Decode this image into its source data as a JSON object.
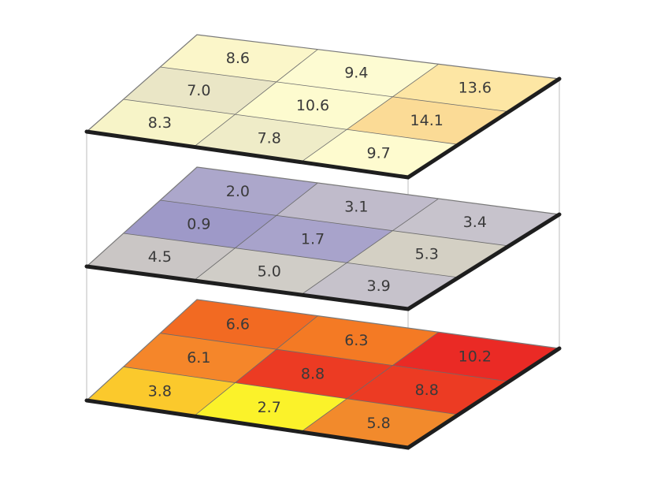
{
  "layers": [
    {
      "name": "top",
      "cells": [
        [
          {
            "value": "8.6",
            "color": "#fbf6c9"
          },
          {
            "value": "9.4",
            "color": "#fdfbd2"
          },
          {
            "value": "13.6",
            "color": "#fde6a4"
          }
        ],
        [
          {
            "value": "7.0",
            "color": "#eae6c6"
          },
          {
            "value": "10.6",
            "color": "#fdfbcf"
          },
          {
            "value": "14.1",
            "color": "#fbdb96"
          }
        ],
        [
          {
            "value": "8.3",
            "color": "#f7f4c8"
          },
          {
            "value": "7.8",
            "color": "#efecc8"
          },
          {
            "value": "9.7",
            "color": "#fefbcf"
          }
        ]
      ]
    },
    {
      "name": "middle",
      "cells": [
        [
          {
            "value": "2.0",
            "color": "#aca7cb"
          },
          {
            "value": "3.1",
            "color": "#c0bbcb"
          },
          {
            "value": "3.4",
            "color": "#c7c3cc"
          }
        ],
        [
          {
            "value": "0.9",
            "color": "#9e99c8"
          },
          {
            "value": "1.7",
            "color": "#a8a3cb"
          },
          {
            "value": "5.3",
            "color": "#d4d0c4"
          }
        ],
        [
          {
            "value": "4.5",
            "color": "#cac6c5"
          },
          {
            "value": "5.0",
            "color": "#d0cdc7"
          },
          {
            "value": "3.9",
            "color": "#c6c2cb"
          }
        ]
      ]
    },
    {
      "name": "bottom",
      "cells": [
        [
          {
            "value": "6.6",
            "color": "#f26a22"
          },
          {
            "value": "6.3",
            "color": "#f47a24"
          },
          {
            "value": "10.2",
            "color": "#ea2a25"
          }
        ],
        [
          {
            "value": "6.1",
            "color": "#f5862a"
          },
          {
            "value": "8.8",
            "color": "#ec3b23"
          },
          {
            "value": "8.8",
            "color": "#ec3b23"
          }
        ],
        [
          {
            "value": "3.8",
            "color": "#fbc92c"
          },
          {
            "value": "2.7",
            "color": "#fbf22a"
          },
          {
            "value": "5.8",
            "color": "#f28a2c"
          }
        ]
      ]
    }
  ]
}
